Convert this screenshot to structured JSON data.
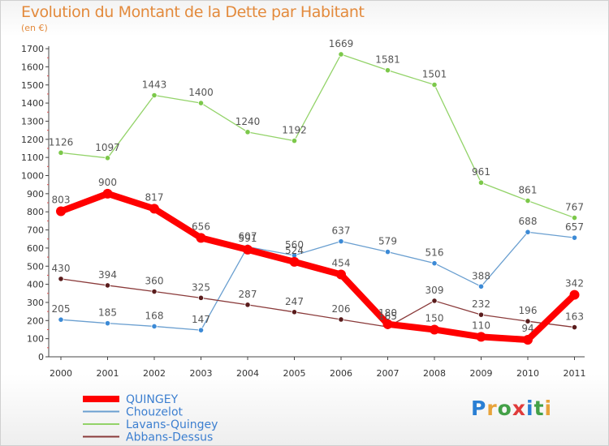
{
  "title": "Evolution du Montant de la Dette par Habitant",
  "unit": "(en €)",
  "logo": {
    "letters": [
      "P",
      "r",
      "o",
      "x",
      "i",
      "t",
      "i"
    ],
    "colors": [
      "#2a7fd4",
      "#e8a33a",
      "#43a047",
      "#e03b3b",
      "#2a7fd4",
      "#43a047",
      "#e8a33a"
    ]
  },
  "chart_data": {
    "type": "line",
    "x": [
      "2000",
      "2001",
      "2002",
      "2003",
      "2004",
      "2005",
      "2006",
      "2007",
      "2008",
      "2009",
      "2010",
      "2011"
    ],
    "ylim": [
      0,
      1700
    ],
    "yticks": [
      0,
      100,
      200,
      300,
      400,
      500,
      600,
      700,
      800,
      900,
      1000,
      1100,
      1200,
      1300,
      1400,
      1500,
      1600,
      1700
    ],
    "grid": false,
    "legend_position": "bottom-left",
    "series": [
      {
        "name": "QUINGEY",
        "color": "#ff0000",
        "marker": "#ff0000",
        "values": [
          803,
          900,
          817,
          656,
          591,
          524,
          454,
          180,
          150,
          110,
          94,
          342
        ],
        "labels": [
          "803",
          "900",
          "817",
          "656",
          "591",
          "524",
          "454",
          "180",
          "150",
          "110",
          "94",
          "342"
        ]
      },
      {
        "name": "Chouzelot",
        "color": "#6a9fd0",
        "marker": "#3c8ad6",
        "values": [
          205,
          185,
          168,
          147,
          607,
          560,
          637,
          579,
          516,
          388,
          688,
          657
        ],
        "labels": [
          "205",
          "185",
          "168",
          "147",
          "607",
          "560",
          "637",
          "579",
          "516",
          "388",
          "688",
          "657"
        ]
      },
      {
        "name": "Lavans-Quingey",
        "color": "#93d369",
        "marker": "#7cc84a",
        "values": [
          1126,
          1097,
          1443,
          1400,
          1240,
          1192,
          1669,
          1581,
          1501,
          961,
          861,
          767
        ],
        "labels": [
          "1126",
          "1097",
          "1443",
          "1400",
          "1240",
          "1192",
          "1669",
          "1581",
          "1501",
          "961",
          "861",
          "767"
        ]
      },
      {
        "name": "Abbans-Dessus",
        "color": "#8a3a3a",
        "marker": "#5a1c1c",
        "values": [
          430,
          394,
          360,
          325,
          287,
          247,
          206,
          165,
          309,
          232,
          196,
          163
        ],
        "labels": [
          "430",
          "394",
          "360",
          "325",
          "287",
          "247",
          "206",
          "165",
          "309",
          "232",
          "196",
          "163"
        ]
      }
    ]
  }
}
